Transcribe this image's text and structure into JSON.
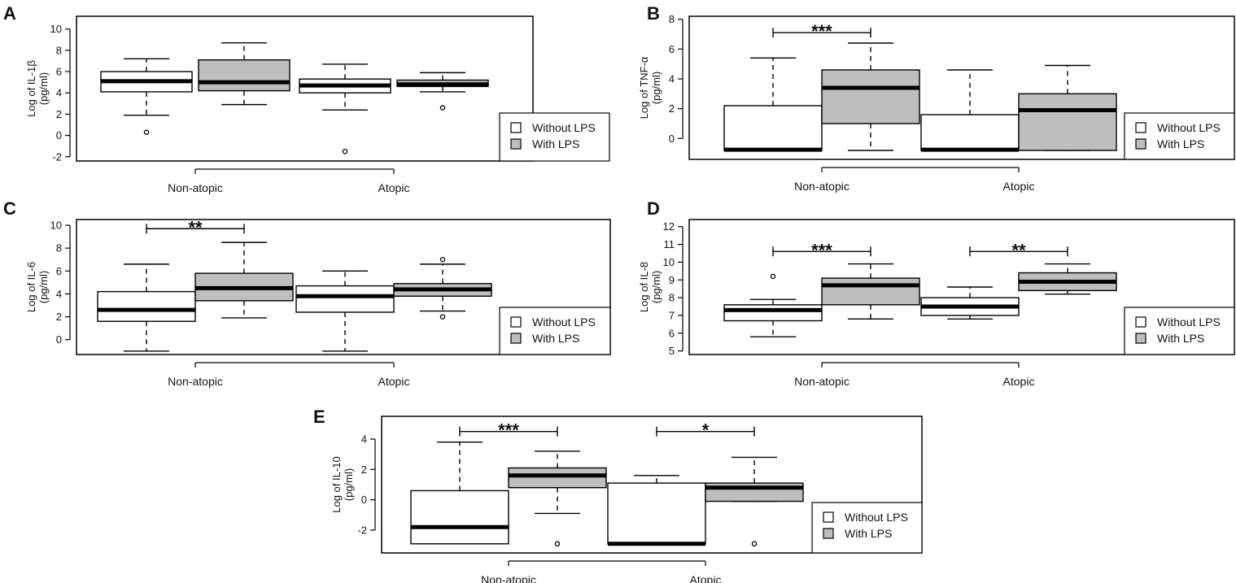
{
  "colors": {
    "without_lps_fill": "#ffffff",
    "with_lps_fill": "#bebebe",
    "stroke": "#000000"
  },
  "legend": {
    "entries": [
      "Without LPS",
      "With LPS"
    ]
  },
  "chart_data": [
    {
      "panel": "A",
      "type": "boxplot",
      "ylabel": [
        "Log of IL-1β",
        "(pg/ml)"
      ],
      "categories": [
        "Non-atopic",
        "Atopic"
      ],
      "yticks": [
        -2,
        0,
        2,
        4,
        6,
        8,
        10
      ],
      "ylim": [
        -2.4,
        11.2
      ],
      "legend_position": "bottom-right",
      "series": [
        {
          "name": "Without LPS",
          "boxes": [
            {
              "min": 1.9,
              "q1": 4.1,
              "median": 5.1,
              "q3": 6.0,
              "max": 7.2,
              "outliers": [
                0.3
              ]
            },
            {
              "min": 2.4,
              "q1": 4.0,
              "median": 4.7,
              "q3": 5.3,
              "max": 6.7,
              "outliers": [
                -1.5
              ]
            }
          ]
        },
        {
          "name": "With LPS",
          "boxes": [
            {
              "min": 2.9,
              "q1": 4.2,
              "median": 5.0,
              "q3": 7.1,
              "max": 8.7,
              "outliers": []
            },
            {
              "min": 4.1,
              "q1": 4.6,
              "median": 4.8,
              "q3": 5.2,
              "max": 5.9,
              "outliers": [
                2.6
              ]
            }
          ]
        }
      ],
      "significance": []
    },
    {
      "panel": "B",
      "type": "boxplot",
      "ylabel": [
        "Log of TNF-α",
        "(pg/ml)"
      ],
      "categories": [
        "Non-atopic",
        "Atopic"
      ],
      "yticks": [
        0,
        2,
        4,
        6,
        8
      ],
      "ylim": [
        -1.4,
        8.2
      ],
      "legend_position": "bottom-right",
      "series": [
        {
          "name": "Without LPS",
          "boxes": [
            {
              "min": -0.8,
              "q1": -0.8,
              "median": -0.75,
              "q3": 2.2,
              "max": 5.4,
              "outliers": []
            },
            {
              "min": -0.8,
              "q1": -0.8,
              "median": -0.75,
              "q3": 1.6,
              "max": 4.6,
              "outliers": []
            }
          ]
        },
        {
          "name": "With LPS",
          "boxes": [
            {
              "min": -0.8,
              "q1": 1.0,
              "median": 3.4,
              "q3": 4.6,
              "max": 6.4,
              "outliers": []
            },
            {
              "min": -0.8,
              "q1": -0.8,
              "median": 1.9,
              "q3": 3.0,
              "max": 4.9,
              "outliers": []
            }
          ]
        }
      ],
      "significance": [
        {
          "category": 0,
          "y": 7.1,
          "label": "***"
        }
      ]
    },
    {
      "panel": "C",
      "type": "boxplot",
      "ylabel": [
        "Log of IL-6",
        "(pg/ml)"
      ],
      "categories": [
        "Non-atopic",
        "Atopic"
      ],
      "yticks": [
        0,
        2,
        4,
        6,
        8,
        10
      ],
      "ylim": [
        -1.3,
        10.5
      ],
      "legend_position": "bottom-right",
      "series": [
        {
          "name": "Without LPS",
          "boxes": [
            {
              "min": -1.0,
              "q1": 1.6,
              "median": 2.6,
              "q3": 4.2,
              "max": 6.6,
              "outliers": []
            },
            {
              "min": -1.0,
              "q1": 2.4,
              "median": 3.8,
              "q3": 4.7,
              "max": 6.0,
              "outliers": []
            }
          ]
        },
        {
          "name": "With LPS",
          "boxes": [
            {
              "min": 1.9,
              "q1": 3.4,
              "median": 4.5,
              "q3": 5.8,
              "max": 8.5,
              "outliers": []
            },
            {
              "min": 2.5,
              "q1": 3.8,
              "median": 4.4,
              "q3": 4.9,
              "max": 6.6,
              "outliers": [
                7.0,
                2.0
              ]
            }
          ]
        }
      ],
      "significance": [
        {
          "category": 0,
          "y": 9.7,
          "label": "**"
        }
      ]
    },
    {
      "panel": "D",
      "type": "boxplot",
      "ylabel": [
        "Log of IL-8",
        "(pg/ml)"
      ],
      "categories": [
        "Non-atopic",
        "Atopic"
      ],
      "yticks": [
        5,
        6,
        7,
        8,
        9,
        10,
        11,
        12
      ],
      "ylim": [
        4.8,
        12.4
      ],
      "legend_position": "bottom-right",
      "series": [
        {
          "name": "Without LPS",
          "boxes": [
            {
              "min": 5.8,
              "q1": 6.7,
              "median": 7.3,
              "q3": 7.6,
              "max": 7.9,
              "outliers": [
                9.2
              ]
            },
            {
              "min": 6.8,
              "q1": 7.0,
              "median": 7.5,
              "q3": 8.0,
              "max": 8.6,
              "outliers": []
            }
          ]
        },
        {
          "name": "With LPS",
          "boxes": [
            {
              "min": 6.8,
              "q1": 7.6,
              "median": 8.7,
              "q3": 9.1,
              "max": 9.9,
              "outliers": []
            },
            {
              "min": 8.2,
              "q1": 8.4,
              "median": 8.9,
              "q3": 9.4,
              "max": 9.9,
              "outliers": []
            }
          ]
        }
      ],
      "significance": [
        {
          "category": 0,
          "y": 10.6,
          "label": "***"
        },
        {
          "category": 1,
          "y": 10.6,
          "label": "**"
        }
      ]
    },
    {
      "panel": "E",
      "type": "boxplot",
      "ylabel": [
        "Log of IL-10",
        "(pg/ml)"
      ],
      "categories": [
        "Non-atopic",
        "Atopic"
      ],
      "yticks": [
        -2,
        0,
        2,
        4
      ],
      "ylim": [
        -3.5,
        5.5
      ],
      "legend_position": "bottom-right",
      "series": [
        {
          "name": "Without LPS",
          "boxes": [
            {
              "min": -2.9,
              "q1": -2.9,
              "median": -1.8,
              "q3": 0.6,
              "max": 3.8,
              "outliers": []
            },
            {
              "min": -2.9,
              "q1": -2.9,
              "median": -2.9,
              "q3": 1.1,
              "max": 1.6,
              "outliers": []
            }
          ]
        },
        {
          "name": "With LPS",
          "boxes": [
            {
              "min": -0.9,
              "q1": 0.8,
              "median": 1.6,
              "q3": 2.1,
              "max": 3.2,
              "outliers": [
                -2.9
              ]
            },
            {
              "min": -0.1,
              "q1": -0.1,
              "median": 0.8,
              "q3": 1.1,
              "max": 2.8,
              "outliers": [
                -2.9
              ]
            }
          ]
        }
      ],
      "significance": [
        {
          "category": 0,
          "y": 4.5,
          "label": "***"
        },
        {
          "category": 1,
          "y": 4.5,
          "label": "*"
        }
      ]
    }
  ]
}
